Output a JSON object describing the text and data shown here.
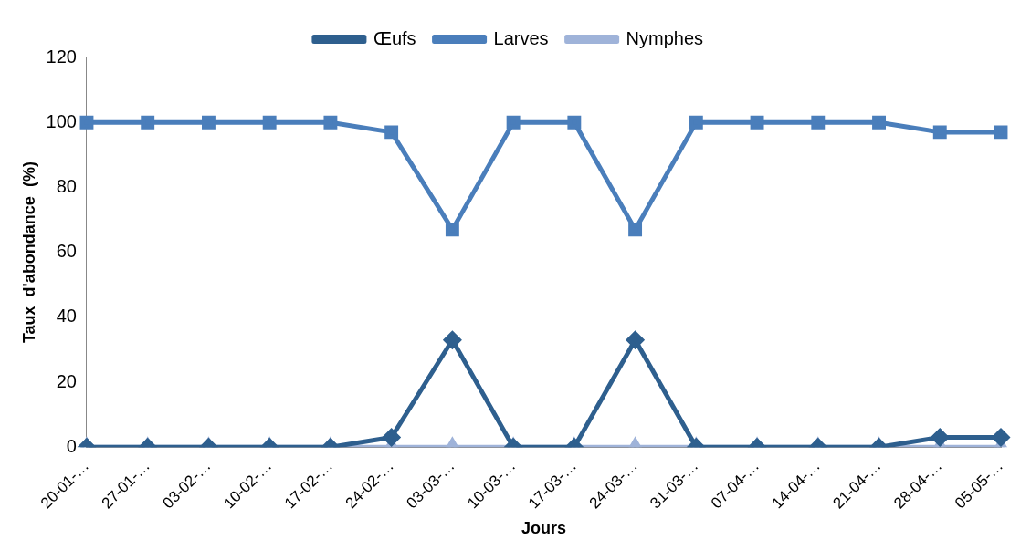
{
  "chart_data": {
    "type": "line",
    "xlabel": "Jours",
    "ylabel": "Taux  d'abondance  (%)",
    "categories": [
      "20-01-…",
      "27-01-…",
      "03-02-…",
      "10-02-…",
      "17-02-…",
      "24-02-…",
      "03-03-…",
      "10-03-…",
      "17-03-…",
      "24-03-…",
      "31-03-…",
      "07-04-…",
      "14-04-…",
      "21-04-…",
      "28-04-…",
      "05-05-…"
    ],
    "series": [
      {
        "name": "Œufs",
        "color": "#2e5f8e",
        "marker": "diamond",
        "values": [
          0,
          0,
          0,
          0,
          0,
          3,
          33,
          0,
          0,
          33,
          0,
          0,
          0,
          0,
          3,
          3
        ]
      },
      {
        "name": "Larves",
        "color": "#4a7ebb",
        "marker": "square",
        "values": [
          100,
          100,
          100,
          100,
          100,
          97,
          67,
          100,
          100,
          67,
          100,
          100,
          100,
          100,
          97,
          97
        ]
      },
      {
        "name": "Nymphes",
        "color": "#9fb3d9",
        "marker": "triangle",
        "values": [
          0,
          0,
          0,
          0,
          0,
          0,
          0,
          0,
          0,
          0,
          0,
          0,
          0,
          0,
          0,
          0
        ]
      }
    ],
    "ylim": [
      0,
      120
    ],
    "yticks": [
      0,
      20,
      40,
      60,
      80,
      100,
      120
    ],
    "grid": false,
    "legend": "top"
  }
}
